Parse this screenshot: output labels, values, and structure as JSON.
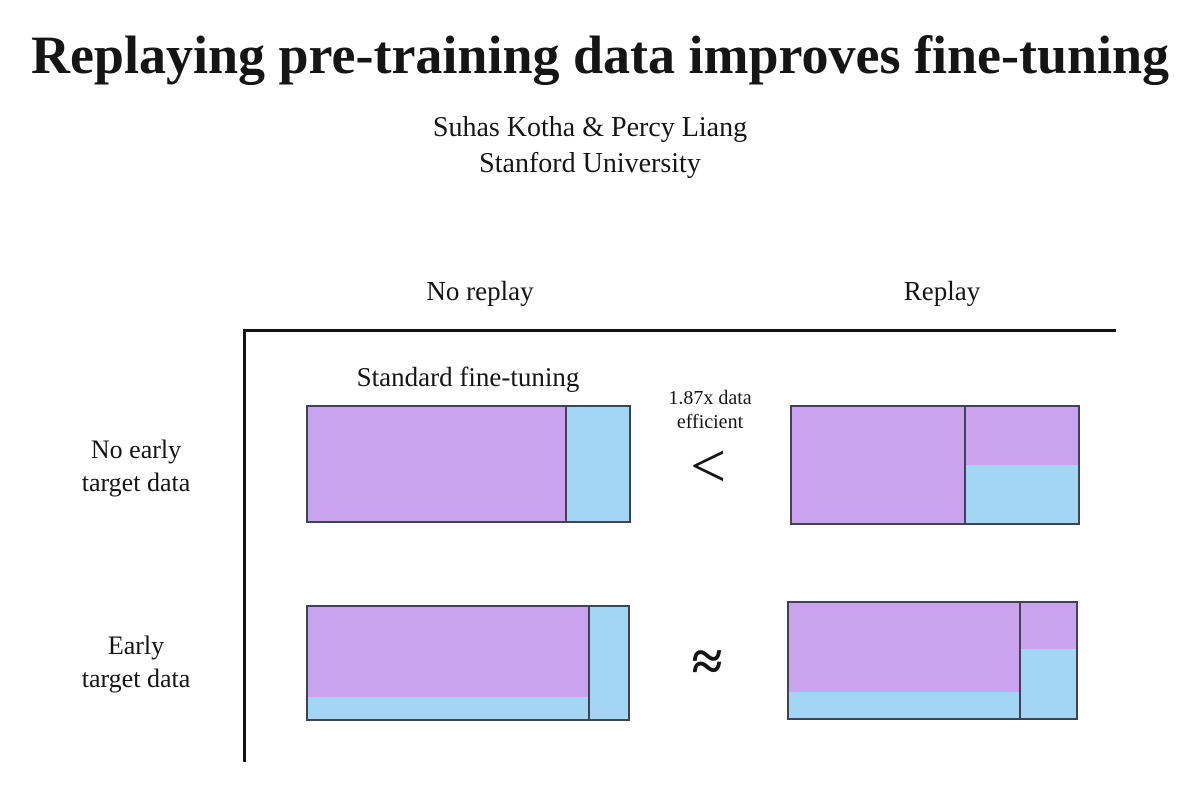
{
  "slide": {
    "title": "Replaying pre-training data improves fine-tuning",
    "authors": "Suhas Kotha & Percy Liang",
    "affiliation": "Stanford University"
  },
  "matrix": {
    "col_headers": {
      "no_replay": "No replay",
      "replay": "Replay"
    },
    "row_headers": {
      "no_early": "No early\ntarget data",
      "early": "Early\ntarget data"
    },
    "standard_ft_label": "Standard fine-tuning",
    "comparison_top": {
      "note": "1.87x data\nefficient",
      "symbol": "<"
    },
    "comparison_bottom": {
      "symbol": "≈"
    }
  },
  "colors": {
    "purple": "#c9a3ee",
    "blue": "#a3d6f5",
    "border": "#3e4452",
    "axis": "#141414"
  },
  "cells": [
    {
      "name": "no-replay-no-early-target",
      "columns": [
        {
          "width_pct": 80,
          "segments": [
            {
              "color": "purple",
              "height_pct": 100
            }
          ]
        },
        {
          "width_pct": 20,
          "segments": [
            {
              "color": "blue",
              "height_pct": 100
            }
          ]
        }
      ]
    },
    {
      "name": "replay-no-early-target",
      "columns": [
        {
          "width_pct": 60,
          "segments": [
            {
              "color": "purple",
              "height_pct": 100
            }
          ]
        },
        {
          "width_pct": 40,
          "segments": [
            {
              "color": "purple",
              "height_pct": 50
            },
            {
              "color": "blue",
              "height_pct": 50
            }
          ]
        }
      ]
    },
    {
      "name": "no-replay-early-target",
      "columns": [
        {
          "width_pct": 87.5,
          "segments": [
            {
              "color": "purple",
              "height_pct": 80
            },
            {
              "color": "blue",
              "height_pct": 20
            }
          ]
        },
        {
          "width_pct": 12.5,
          "segments": [
            {
              "color": "blue",
              "height_pct": 100
            }
          ]
        }
      ]
    },
    {
      "name": "replay-early-target",
      "columns": [
        {
          "width_pct": 80,
          "segments": [
            {
              "color": "purple",
              "height_pct": 77
            },
            {
              "color": "blue",
              "height_pct": 23
            }
          ]
        },
        {
          "width_pct": 20,
          "segments": [
            {
              "color": "purple",
              "height_pct": 40
            },
            {
              "color": "blue",
              "height_pct": 60
            }
          ]
        }
      ]
    }
  ]
}
